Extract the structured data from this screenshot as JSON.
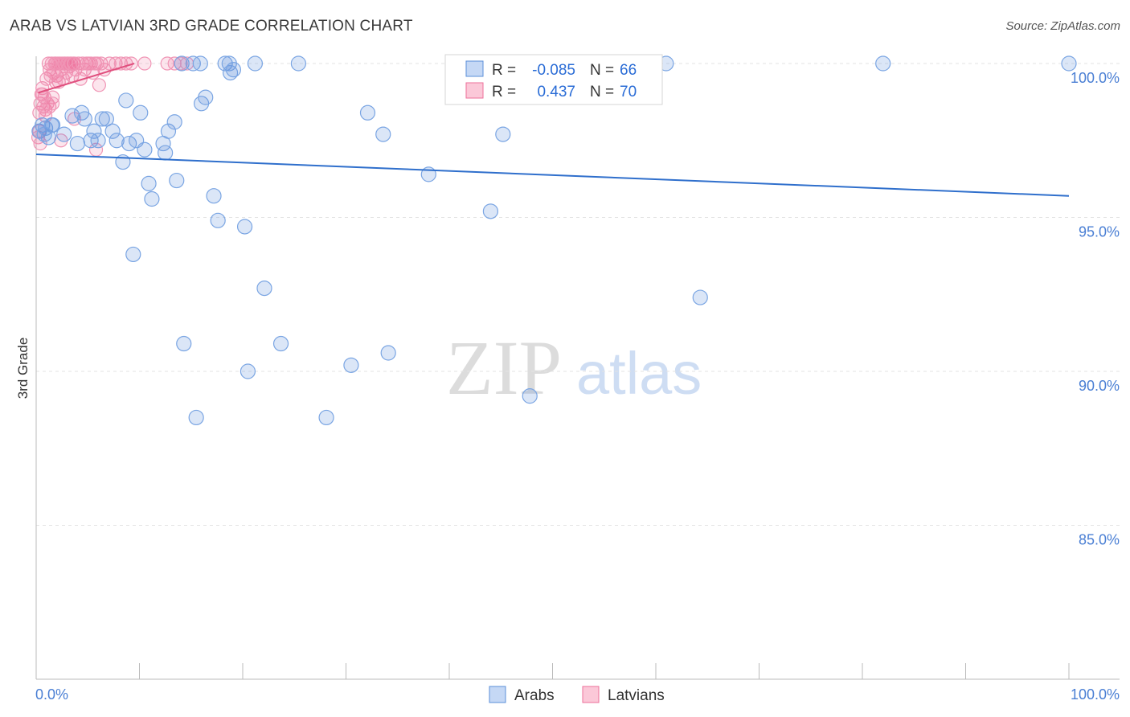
{
  "title": "ARAB VS LATVIAN 3RD GRADE CORRELATION CHART",
  "source": "Source: ZipAtlas.com",
  "colors": {
    "arabs": "#5b8fd9",
    "latvians": "#ee6f9a",
    "axis_text": "#4a7fd4",
    "trend_blue": "#2f6fcc",
    "trend_pink": "#e0507e"
  },
  "legend_box": {
    "rows": [
      {
        "r_label": "R = ",
        "r_value": "-0.085",
        "n_label": "N = ",
        "n_value": "66"
      },
      {
        "r_label": "R = ",
        "r_value": "0.437",
        "n_label": "N = ",
        "n_value": "70"
      }
    ]
  },
  "chart_data": {
    "type": "scatter",
    "title": "ARAB VS LATVIAN 3RD GRADE CORRELATION CHART",
    "xlabel": "",
    "ylabel": "3rd Grade",
    "xlim": [
      0,
      100
    ],
    "ylim": [
      80.5,
      100.5
    ],
    "x_tick_labels": [
      "0.0%",
      "100.0%"
    ],
    "y_ticks": [
      85,
      90,
      95,
      100
    ],
    "y_tick_labels": [
      "85.0%",
      "90.0%",
      "95.0%",
      "100.0%"
    ],
    "grid": true,
    "legend_position": "bottom-center",
    "series": [
      {
        "name": "Arabs",
        "r": -0.085,
        "n": 66,
        "trend": {
          "x": [
            0,
            100
          ],
          "y": [
            97.05,
            95.7
          ]
        },
        "points": [
          [
            0.3,
            97.8
          ],
          [
            0.6,
            98.0
          ],
          [
            0.9,
            97.9
          ],
          [
            1.2,
            97.6
          ],
          [
            1.6,
            98.0
          ],
          [
            2.7,
            97.7
          ],
          [
            3.5,
            98.3
          ],
          [
            4,
            97.4
          ],
          [
            4.4,
            98.4
          ],
          [
            4.7,
            98.2
          ],
          [
            5.3,
            97.5
          ],
          [
            5.6,
            97.8
          ],
          [
            6,
            97.5
          ],
          [
            6.4,
            98.2
          ],
          [
            6.8,
            98.2
          ],
          [
            7.4,
            97.8
          ],
          [
            7.8,
            97.5
          ],
          [
            8.4,
            96.8
          ],
          [
            8.7,
            98.8
          ],
          [
            9,
            97.4
          ],
          [
            9.7,
            97.5
          ],
          [
            10.1,
            98.4
          ],
          [
            10.5,
            97.2
          ],
          [
            10.9,
            96.1
          ],
          [
            11.2,
            95.6
          ],
          [
            12.3,
            97.4
          ],
          [
            12.5,
            97.1
          ],
          [
            12.8,
            97.8
          ],
          [
            13.4,
            98.1
          ],
          [
            13.6,
            96.2
          ],
          [
            14.1,
            100
          ],
          [
            15.2,
            100
          ],
          [
            15.9,
            100
          ],
          [
            16,
            98.7
          ],
          [
            16.4,
            98.9
          ],
          [
            17.2,
            95.7
          ],
          [
            17.6,
            94.9
          ],
          [
            18.3,
            100
          ],
          [
            18.7,
            100
          ],
          [
            18.8,
            99.7
          ],
          [
            19.1,
            99.8
          ],
          [
            20.2,
            94.7
          ],
          [
            21.2,
            100
          ],
          [
            22.1,
            92.7
          ],
          [
            23.7,
            90.9
          ],
          [
            25.4,
            100
          ],
          [
            9.4,
            93.8
          ],
          [
            14.3,
            90.9
          ],
          [
            15.5,
            88.5
          ],
          [
            20.5,
            90.0
          ],
          [
            28.1,
            88.5
          ],
          [
            30.5,
            90.2
          ],
          [
            32.1,
            98.4
          ],
          [
            33.6,
            97.7
          ],
          [
            34.1,
            90.6
          ],
          [
            38.0,
            96.4
          ],
          [
            44.0,
            95.2
          ],
          [
            45.2,
            97.7
          ],
          [
            47.8,
            89.2
          ],
          [
            47.1,
            100
          ],
          [
            61.0,
            100
          ],
          [
            64.3,
            92.4
          ],
          [
            82.0,
            100
          ],
          [
            100.0,
            100
          ],
          [
            1.5,
            98.0
          ],
          [
            0.8,
            97.7
          ]
        ]
      },
      {
        "name": "Latvians",
        "r": 0.437,
        "n": 70,
        "trend": {
          "x": [
            0.2,
            9.5
          ],
          "y": [
            99.05,
            100.0
          ]
        },
        "points": [
          [
            0.2,
            97.6
          ],
          [
            0.3,
            98.4
          ],
          [
            0.4,
            98.7
          ],
          [
            0.5,
            99.0
          ],
          [
            0.6,
            99.2
          ],
          [
            0.7,
            98.6
          ],
          [
            0.8,
            98.9
          ],
          [
            0.9,
            98.5
          ],
          [
            1.0,
            99.5
          ],
          [
            1.1,
            98.7
          ],
          [
            1.2,
            100
          ],
          [
            1.3,
            99.8
          ],
          [
            1.4,
            99.6
          ],
          [
            1.5,
            100
          ],
          [
            1.6,
            98.9
          ],
          [
            1.7,
            99.7
          ],
          [
            1.8,
            100
          ],
          [
            1.9,
            100
          ],
          [
            2.0,
            99.6
          ],
          [
            2.1,
            100
          ],
          [
            2.2,
            99.4
          ],
          [
            2.3,
            100
          ],
          [
            2.4,
            99.8
          ],
          [
            2.5,
            100
          ],
          [
            2.6,
            99.5
          ],
          [
            2.7,
            100
          ],
          [
            2.8,
            100
          ],
          [
            2.9,
            99.7
          ],
          [
            3.0,
            100
          ],
          [
            3.1,
            100
          ],
          [
            3.2,
            99.9
          ],
          [
            3.3,
            100
          ],
          [
            3.4,
            100
          ],
          [
            3.5,
            99.6
          ],
          [
            3.6,
            100
          ],
          [
            3.7,
            100
          ],
          [
            3.8,
            99.8
          ],
          [
            4.1,
            100
          ],
          [
            4.3,
            99.5
          ],
          [
            4.5,
            100
          ],
          [
            4.7,
            99.8
          ],
          [
            4.9,
            100
          ],
          [
            5.1,
            100
          ],
          [
            5.3,
            100
          ],
          [
            5.5,
            99.7
          ],
          [
            5.7,
            100
          ],
          [
            5.9,
            100
          ],
          [
            6.1,
            99.3
          ],
          [
            6.3,
            100
          ],
          [
            6.6,
            99.8
          ],
          [
            7.1,
            100
          ],
          [
            7.7,
            100
          ],
          [
            8.2,
            100
          ],
          [
            8.7,
            100
          ],
          [
            9.2,
            100
          ],
          [
            10.5,
            100
          ],
          [
            12.7,
            100
          ],
          [
            13.4,
            100
          ],
          [
            14.0,
            100
          ],
          [
            14.6,
            100
          ],
          [
            0.4,
            97.4
          ],
          [
            0.9,
            98.3
          ],
          [
            1.3,
            98.6
          ],
          [
            1.6,
            98.7
          ],
          [
            2.4,
            97.5
          ],
          [
            5.8,
            97.2
          ],
          [
            0.6,
            99.0
          ],
          [
            1.9,
            99.4
          ],
          [
            3.7,
            98.2
          ],
          [
            0.3,
            97.8
          ]
        ]
      }
    ]
  },
  "bottom_legend": [
    "Arabs",
    "Latvians"
  ],
  "watermark": "ZIPatlas"
}
